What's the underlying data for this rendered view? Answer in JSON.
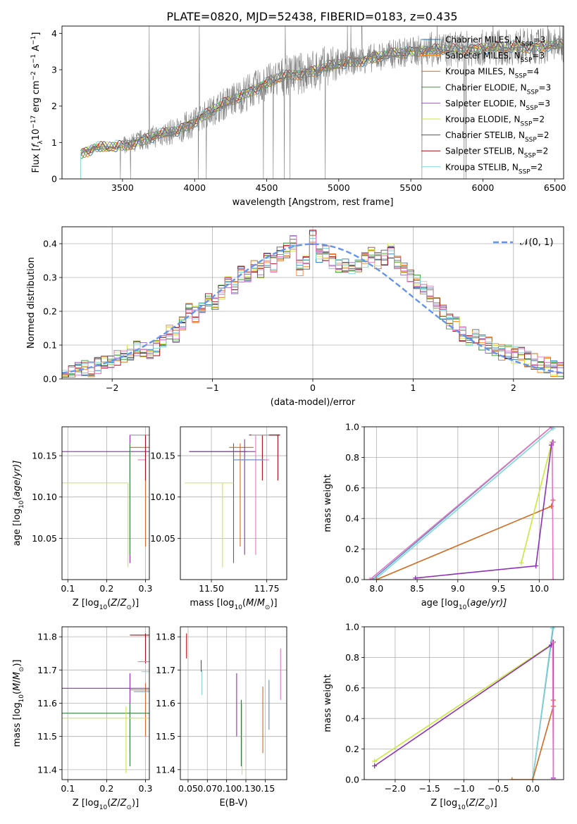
{
  "figure": {
    "title": "PLATE=0820, MJD=52438, FIBERID=0183, z=0.435"
  },
  "colors": {
    "blue": "#1f77b4",
    "orange": "#ff7f0e",
    "dorange": "#d2691e",
    "green": "#2ca02c",
    "purple": "#9467bd",
    "mpurple": "#8e2fb5",
    "yellow": "#c9e93a",
    "grey": "#555555",
    "red": "#a50f15",
    "cyan": "#7fd6d6",
    "pink": "#e377c2",
    "lblue": "#6495ed",
    "darkgreen": "#3a7d44",
    "steelblue": "#5b8fc7",
    "obs": "#7f7f7f"
  },
  "chart_data": [
    {
      "id": "spectrum",
      "type": "line",
      "title": "PLATE=0820, MJD=52438, FIBERID=0183, z=0.435",
      "xlabel": "wavelength [Angstrom, rest frame]",
      "ylabel": "Flux [f_λ 10^-17 erg cm^-2 s^-1 A^-1]",
      "ylabel_parts": {
        "pre": "Flux [",
        "f": "f",
        "f_sub": "λ",
        "mid": "10",
        "exp1": "−17",
        "mid2": " erg cm",
        "exp2": "−2",
        "mid3": " s",
        "exp3": "−1",
        "mid4": " A",
        "exp4": "−1",
        "post": "]"
      },
      "xlim": [
        3080,
        6560
      ],
      "ylim": [
        0,
        4.2
      ],
      "xticks": [
        3500,
        4000,
        4500,
        5000,
        5500,
        6000,
        6500
      ],
      "yticks": [
        0,
        1,
        2,
        3,
        4
      ],
      "continuum": {
        "x": [
          3210,
          3300,
          3500,
          3700,
          3900,
          4000,
          4200,
          4400,
          4600,
          4800,
          5000,
          5200,
          5400,
          5600,
          5800,
          6000,
          6200,
          6400,
          6560
        ],
        "y": [
          0.7,
          0.85,
          0.9,
          1.15,
          1.35,
          1.6,
          2.05,
          2.45,
          2.8,
          2.95,
          3.15,
          3.3,
          3.45,
          3.55,
          3.55,
          3.6,
          3.62,
          3.65,
          3.68
        ]
      },
      "legend_position": "right",
      "series": [
        {
          "name_pre": "Chabrier MILES, N",
          "name_sub": "SSP",
          "name_post": "=3",
          "color": "#1f77b4"
        },
        {
          "name_pre": "Salpeter MILES, N",
          "name_sub": "SSP",
          "name_post": "=3",
          "color": "#ff7f0e"
        },
        {
          "name_pre": "Kroupa MILES, N",
          "name_sub": "SSP",
          "name_post": "=4",
          "color": "#d2691e"
        },
        {
          "name_pre": "Chabrier ELODIE, N",
          "name_sub": "SSP",
          "name_post": "=3",
          "color": "#2ca02c"
        },
        {
          "name_pre": "Salpeter ELODIE, N",
          "name_sub": "SSP",
          "name_post": "=3",
          "color": "#9467bd"
        },
        {
          "name_pre": "Kroupa ELODIE, N",
          "name_sub": "SSP",
          "name_post": "=2",
          "color": "#c9e93a"
        },
        {
          "name_pre": "Chabrier STELIB, N",
          "name_sub": "SSP",
          "name_post": "=2",
          "color": "#555555"
        },
        {
          "name_pre": "Salpeter STELIB, N",
          "name_sub": "SSP",
          "name_post": "=2",
          "color": "#a50f15"
        },
        {
          "name_pre": "Kroupa STELIB, N",
          "name_sub": "SSP",
          "name_post": "=2",
          "color": "#7fd6d6"
        }
      ]
    },
    {
      "id": "residuals",
      "type": "line",
      "xlabel": "(data-model)/error",
      "ylabel": "Normed distribution",
      "xlim": [
        -2.5,
        2.5
      ],
      "ylim": [
        0,
        0.45
      ],
      "xticks": [
        -2,
        -1,
        0,
        1,
        2
      ],
      "yticks": [
        0.0,
        0.1,
        0.2,
        0.3,
        0.4
      ],
      "grid": true,
      "bin_width": 0.1,
      "bin_start": -2.5,
      "base_hist": [
        0.02,
        0.02,
        0.03,
        0.03,
        0.03,
        0.04,
        0.05,
        0.05,
        0.06,
        0.06,
        0.08,
        0.09,
        0.09,
        0.08,
        0.09,
        0.12,
        0.14,
        0.13,
        0.17,
        0.2,
        0.19,
        0.22,
        0.24,
        0.23,
        0.26,
        0.28,
        0.27,
        0.31,
        0.3,
        0.33,
        0.32,
        0.35,
        0.34,
        0.37,
        0.38,
        0.4,
        0.33,
        0.34,
        0.42,
        0.36,
        0.37,
        0.35,
        0.33,
        0.34,
        0.32,
        0.33,
        0.35,
        0.37,
        0.35,
        0.36,
        0.38,
        0.34,
        0.33,
        0.3,
        0.29,
        0.27,
        0.25,
        0.22,
        0.2,
        0.17,
        0.16,
        0.13,
        0.12,
        0.13,
        0.11,
        0.1,
        0.09,
        0.08,
        0.08,
        0.07,
        0.07,
        0.06,
        0.05,
        0.04,
        0.04,
        0.03,
        0.03
      ],
      "series": [
        {
          "color": "#1f77b4"
        },
        {
          "color": "#ff7f0e"
        },
        {
          "color": "#d2691e"
        },
        {
          "color": "#2ca02c"
        },
        {
          "color": "#9467bd"
        },
        {
          "color": "#c9e93a"
        },
        {
          "color": "#555555"
        },
        {
          "color": "#a50f15"
        },
        {
          "color": "#7fd6d6"
        },
        {
          "color": "#e377c2"
        }
      ],
      "gaussian": {
        "name": "N(0,1)",
        "legend_text": "𝒩(0, 1)",
        "mu": 0,
        "sigma": 1,
        "color": "#6495ed"
      }
    },
    {
      "id": "age_vs_Z",
      "type": "scatter",
      "xlabel_pre": "Z [log",
      "xlabel_sub": "10",
      "xlabel_post": "(Z/Z",
      "xlabel_sun": "⊙",
      "xlabel_end": ")]",
      "ylabel_pre": "age  [log",
      "ylabel_sub": "10",
      "ylabel_post": "(age/yr)]",
      "xlim": [
        0.085,
        0.31
      ],
      "ylim": [
        10.0,
        10.185
      ],
      "xticks": [
        0.1,
        0.2,
        0.3
      ],
      "yticks": [
        10.05,
        10.1,
        10.15
      ],
      "grid": true,
      "points": [
        {
          "x": 0.3,
          "y": 10.175,
          "xlo": 0.26,
          "xhi": 0.31,
          "ylo": 10.175,
          "yhi": 10.175,
          "color": "#a50f15"
        },
        {
          "x": 0.29,
          "y": 10.175,
          "xlo": 0.26,
          "xhi": 0.31,
          "ylo": 10.175,
          "yhi": 10.175,
          "color": "#7fd6d6"
        },
        {
          "x": 0.3,
          "y": 10.16,
          "xlo": 0.26,
          "xhi": 0.31,
          "ylo": 10.04,
          "yhi": 10.16,
          "color": "#d2691e"
        },
        {
          "x": 0.26,
          "y": 10.155,
          "xlo": 0.085,
          "xhi": 0.31,
          "ylo": 10.02,
          "yhi": 10.175,
          "color": "#8e2fb5"
        },
        {
          "x": 0.26,
          "y": 10.155,
          "xlo": 0.26,
          "xhi": 0.26,
          "ylo": 10.03,
          "yhi": 10.165,
          "color": "#3a7d44"
        },
        {
          "x": 0.255,
          "y": 10.117,
          "xlo": 0.085,
          "xhi": 0.255,
          "ylo": 10.015,
          "yhi": 10.117,
          "color": "#c9e93a"
        },
        {
          "x": 0.29,
          "y": 10.145,
          "xlo": 0.28,
          "xhi": 0.3,
          "ylo": 10.145,
          "yhi": 10.145,
          "color": "#e377c2"
        },
        {
          "x": 0.3,
          "y": 10.12,
          "xlo": 0.3,
          "xhi": 0.3,
          "ylo": 10.12,
          "yhi": 10.175,
          "color": "#a50f15"
        }
      ]
    },
    {
      "id": "age_vs_mass",
      "type": "scatter",
      "xlabel_pre": "mass [log",
      "xlabel_sub": "10",
      "xlabel_post": "(M/M",
      "xlabel_sun": "⊙",
      "xlabel_end": ")]",
      "xlim": [
        11.36,
        11.84
      ],
      "ylim": [
        10.0,
        10.185
      ],
      "xticks": [
        11.5,
        11.75
      ],
      "yticks": [
        10.05,
        10.1,
        10.15
      ],
      "grid": true,
      "points": [
        {
          "x": 11.6,
          "y": 10.155,
          "xlo": 11.4,
          "xhi": 11.66,
          "ylo": 10.02,
          "yhi": 10.165,
          "color": "#3a7d44"
        },
        {
          "x": 11.63,
          "y": 10.16,
          "xlo": 11.58,
          "xhi": 11.69,
          "ylo": 10.04,
          "yhi": 10.165,
          "color": "#d2691e"
        },
        {
          "x": 11.65,
          "y": 10.155,
          "xlo": 11.4,
          "xhi": 11.7,
          "ylo": 10.03,
          "yhi": 10.17,
          "color": "#8e2fb5"
        },
        {
          "x": 11.55,
          "y": 10.117,
          "xlo": 11.38,
          "xhi": 11.6,
          "ylo": 10.015,
          "yhi": 10.117,
          "color": "#c9e93a"
        },
        {
          "x": 11.73,
          "y": 10.175,
          "xlo": 11.67,
          "xhi": 11.81,
          "ylo": 10.12,
          "yhi": 10.175,
          "color": "#a50f15"
        },
        {
          "x": 11.8,
          "y": 10.175,
          "xlo": 11.73,
          "xhi": 11.81,
          "ylo": 10.12,
          "yhi": 10.175,
          "color": "#a50f15"
        },
        {
          "x": 11.7,
          "y": 10.145,
          "xlo": 11.62,
          "xhi": 11.76,
          "ylo": 10.03,
          "yhi": 10.175,
          "color": "#e377c2"
        },
        {
          "x": 11.69,
          "y": 10.145,
          "xlo": 11.6,
          "xhi": 11.74,
          "ylo": 10.145,
          "yhi": 10.145,
          "color": "#5b8fc7"
        },
        {
          "x": 11.72,
          "y": 10.175,
          "xlo": 11.68,
          "xhi": 11.76,
          "ylo": 10.175,
          "yhi": 10.175,
          "color": "#7fd6d6"
        }
      ]
    },
    {
      "id": "massweight_vs_age",
      "type": "line",
      "xlabel_pre": "age  [log",
      "xlabel_sub": "10",
      "xlabel_post": "(age/yr)]",
      "ylabel": "mass weight",
      "xlim": [
        7.85,
        10.3
      ],
      "ylim": [
        0,
        1.0
      ],
      "xticks": [
        8.0,
        8.5,
        9.0,
        9.5,
        10.0
      ],
      "yticks": [
        0.0,
        0.2,
        0.4,
        0.6,
        0.8,
        1.0
      ],
      "grid": true,
      "series": [
        {
          "color": "#5b8fc7",
          "x": [
            7.95,
            10.15
          ],
          "y": [
            0.0,
            1.0
          ]
        },
        {
          "color": "#7fd6d6",
          "x": [
            7.98,
            10.17
          ],
          "y": [
            0.0,
            0.99
          ]
        },
        {
          "color": "#e377c2",
          "x": [
            7.92,
            10.15
          ],
          "y": [
            0.0,
            1.0
          ]
        },
        {
          "color": "#d2691e",
          "x": [
            8.0,
            10.15,
            10.17
          ],
          "y": [
            0.0,
            0.48,
            0.52
          ]
        },
        {
          "color": "#c9e93a",
          "x": [
            9.78,
            10.15,
            10.17
          ],
          "y": [
            0.11,
            0.89,
            0.9
          ]
        },
        {
          "color": "#8e2fb5",
          "x": [
            8.48,
            9.96,
            10.15,
            10.17
          ],
          "y": [
            0.01,
            0.09,
            0.88,
            0.9
          ]
        },
        {
          "color": "#e377c2",
          "x": [
            10.16,
            10.17
          ],
          "y": [
            0.9,
            0.0
          ]
        }
      ]
    },
    {
      "id": "mass_vs_Z",
      "type": "scatter",
      "xlabel_pre": "Z [log",
      "xlabel_sub": "10",
      "xlabel_post": "(Z/Z",
      "xlabel_sun": "⊙",
      "xlabel_end": ")]",
      "ylabel_pre": "mass [log",
      "ylabel_sub": "10",
      "ylabel_post": "(M/M",
      "ylabel_sun": "⊙",
      "ylabel_end": ")]",
      "xlim": [
        0.085,
        0.31
      ],
      "ylim": [
        11.37,
        11.83
      ],
      "xticks": [
        0.1,
        0.2,
        0.3
      ],
      "yticks": [
        11.4,
        11.5,
        11.6,
        11.7,
        11.8
      ],
      "grid": true,
      "points": [
        {
          "x": 0.3,
          "y": 11.805,
          "xlo": 0.26,
          "xhi": 0.31,
          "ylo": 11.72,
          "yhi": 11.81,
          "color": "#a50f15"
        },
        {
          "x": 0.295,
          "y": 11.725,
          "xlo": 0.28,
          "xhi": 0.31,
          "ylo": 11.725,
          "yhi": 11.725,
          "color": "#e377c2"
        },
        {
          "x": 0.3,
          "y": 11.695,
          "xlo": 0.29,
          "xhi": 0.31,
          "ylo": 11.695,
          "yhi": 11.695,
          "color": "#7fd6d6"
        },
        {
          "x": 0.3,
          "y": 11.64,
          "xlo": 0.26,
          "xhi": 0.31,
          "ylo": 11.5,
          "yhi": 11.66,
          "color": "#d2691e"
        },
        {
          "x": 0.26,
          "y": 11.645,
          "xlo": 0.085,
          "xhi": 0.31,
          "ylo": 11.45,
          "yhi": 11.69,
          "color": "#8e2fb5"
        },
        {
          "x": 0.26,
          "y": 11.57,
          "xlo": 0.085,
          "xhi": 0.31,
          "ylo": 11.41,
          "yhi": 11.6,
          "color": "#3a7d44"
        },
        {
          "x": 0.25,
          "y": 11.555,
          "xlo": 0.085,
          "xhi": 0.31,
          "ylo": 11.39,
          "yhi": 11.59,
          "color": "#c9e93a"
        },
        {
          "x": 0.3,
          "y": 11.635,
          "xlo": 0.27,
          "xhi": 0.31,
          "ylo": 11.635,
          "yhi": 11.635,
          "color": "#5b8fc7"
        }
      ]
    },
    {
      "id": "mass_vs_EBV",
      "type": "scatter",
      "xlabel": "E(B-V)",
      "xlim": [
        0.04,
        0.178
      ],
      "ylim": [
        11.37,
        11.83
      ],
      "xticks": [
        0.05,
        0.075,
        0.1,
        0.125,
        0.15
      ],
      "yticks": [
        11.4,
        11.5,
        11.6,
        11.7,
        11.8
      ],
      "grid": true,
      "points": [
        {
          "x": 0.048,
          "y": 11.79,
          "ylo": 11.735,
          "yhi": 11.81,
          "color": "#a50f15"
        },
        {
          "x": 0.067,
          "y": 11.72,
          "ylo": 11.695,
          "yhi": 11.73,
          "color": "#555555"
        },
        {
          "x": 0.068,
          "y": 11.66,
          "ylo": 11.625,
          "yhi": 11.7,
          "color": "#7fd6d6"
        },
        {
          "x": 0.113,
          "y": 11.6,
          "ylo": 11.5,
          "yhi": 11.69,
          "color": "#8e2fb5"
        },
        {
          "x": 0.119,
          "y": 11.55,
          "ylo": 11.41,
          "yhi": 11.61,
          "color": "#3a7d44"
        },
        {
          "x": 0.12,
          "y": 11.5,
          "ylo": 11.385,
          "yhi": 11.6,
          "color": "#c9e93a"
        },
        {
          "x": 0.147,
          "y": 11.55,
          "ylo": 11.45,
          "yhi": 11.65,
          "color": "#d2691e"
        },
        {
          "x": 0.155,
          "y": 11.6,
          "ylo": 11.52,
          "yhi": 11.67,
          "color": "#5b8fc7"
        },
        {
          "x": 0.17,
          "y": 11.69,
          "ylo": 11.61,
          "yhi": 11.765,
          "color": "#e377c2"
        }
      ]
    },
    {
      "id": "massweight_vs_Z",
      "type": "line",
      "xlabel_pre": "Z [log",
      "xlabel_sub": "10",
      "xlabel_post": "(Z/Z",
      "xlabel_sun": "⊙",
      "xlabel_end": ")]",
      "ylabel": "mass weight",
      "xlim": [
        -2.45,
        0.45
      ],
      "ylim": [
        0,
        1.0
      ],
      "xticks": [
        -2.0,
        -1.5,
        -1.0,
        -0.5,
        0.0
      ],
      "yticks": [
        0.0,
        0.2,
        0.4,
        0.6,
        0.8,
        1.0
      ],
      "grid": true,
      "series": [
        {
          "color": "#5b8fc7",
          "x": [
            0.0,
            0.3
          ],
          "y": [
            0.0,
            1.0
          ]
        },
        {
          "color": "#7fd6d6",
          "x": [
            0.0,
            0.29
          ],
          "y": [
            0.0,
            0.99
          ]
        },
        {
          "color": "#d2691e",
          "x": [
            -0.3,
            0.0,
            0.3,
            0.3
          ],
          "y": [
            0.0,
            0.0,
            0.48,
            0.52
          ]
        },
        {
          "color": "#c9e93a",
          "x": [
            -2.3,
            0.29
          ],
          "y": [
            0.12,
            0.89
          ]
        },
        {
          "color": "#8e2fb5",
          "x": [
            -2.3,
            0.27,
            0.3,
            0.3
          ],
          "y": [
            0.09,
            0.88,
            0.9,
            0.01
          ]
        },
        {
          "color": "#e377c2",
          "x": [
            0.29,
            0.3
          ],
          "y": [
            0.9,
            0.0
          ]
        }
      ]
    }
  ]
}
